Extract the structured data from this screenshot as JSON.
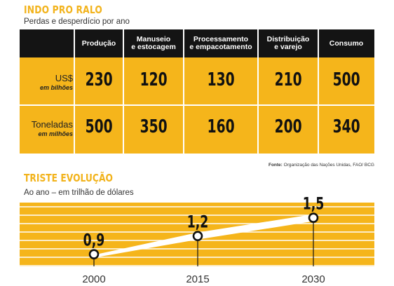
{
  "table": {
    "title": "INDO PRO RALO",
    "subtitle": "Perdas e desperdício por ano",
    "columns": [
      "Produção",
      "Manuseio\ne estocagem",
      "Processamento\ne empacotamento",
      "Distribuição\ne varejo",
      "Consumo"
    ],
    "rows": [
      {
        "label": "US$",
        "unit": "em bilhões",
        "values": [
          "230",
          "120",
          "130",
          "210",
          "500"
        ]
      },
      {
        "label": "Toneladas",
        "unit": "em milhões",
        "values": [
          "500",
          "350",
          "160",
          "200",
          "340"
        ]
      }
    ],
    "source_label": "Fonte:",
    "source_text": "Organização das Nações Unidas, FAO/ BCG"
  },
  "colors": {
    "accent": "#f5b51b",
    "header": "#141414",
    "line": "#ffffff"
  },
  "chart_data": {
    "type": "line",
    "title": "TRISTE EVOLUÇÃO",
    "subtitle": "Ao ano – em trilhão de dólares",
    "x": [
      "2000",
      "2015",
      "2030"
    ],
    "y": [
      0.9,
      1.2,
      1.5
    ],
    "data_labels": [
      "0,9",
      "1,2",
      "1,5"
    ],
    "ylim": [
      0.7,
      1.75
    ],
    "grid": true
  }
}
